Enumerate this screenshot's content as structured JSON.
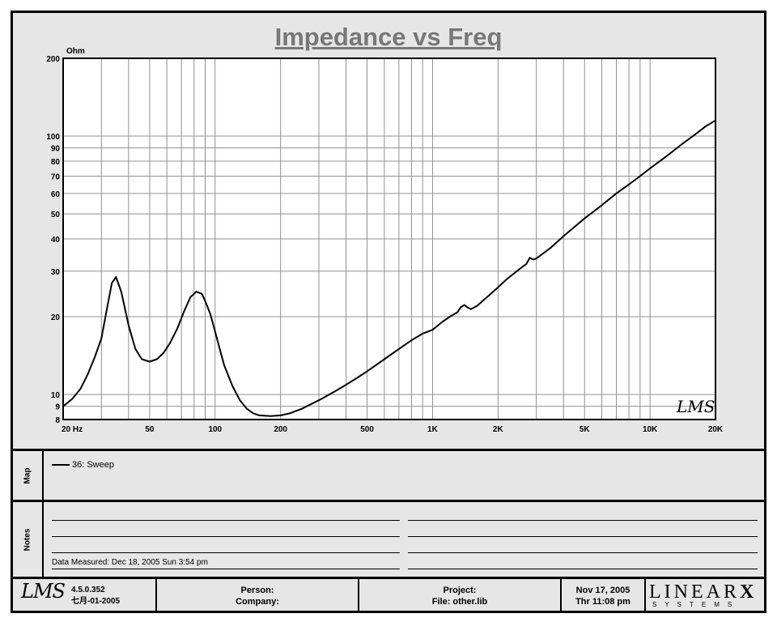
{
  "chart_data": {
    "type": "line",
    "title": "Impedance vs Freq",
    "ylabel": "Ohm",
    "x_scale": "log",
    "y_scale": "log",
    "xlim": [
      20,
      20000
    ],
    "ylim": [
      8,
      200
    ],
    "x_ticks": [
      20,
      50,
      100,
      200,
      500,
      1000,
      2000,
      5000,
      10000,
      20000
    ],
    "x_tick_labels": [
      "20  Hz",
      "50",
      "100",
      "200",
      "500",
      "1K",
      "2K",
      "5K",
      "10K",
      "20K"
    ],
    "y_ticks": [
      8,
      9,
      10,
      20,
      30,
      40,
      50,
      60,
      70,
      80,
      90,
      100,
      200
    ],
    "y_tick_labels": [
      "8",
      "9",
      "10",
      "20",
      "30",
      "40",
      "50",
      "60",
      "70",
      "80",
      "90",
      "100",
      "200"
    ],
    "grid": true,
    "watermark": "LMS",
    "series": [
      {
        "name": "36: Sweep",
        "color": "#000000",
        "x": [
          20,
          22,
          24,
          26,
          28,
          30,
          32,
          33.5,
          35,
          37,
          40,
          43,
          46,
          50,
          54,
          58,
          62,
          67,
          72,
          77,
          82,
          87,
          90,
          95,
          100,
          105,
          110,
          120,
          130,
          140,
          150,
          160,
          180,
          200,
          220,
          250,
          300,
          350,
          400,
          450,
          500,
          600,
          700,
          800,
          900,
          1000,
          1100,
          1200,
          1300,
          1350,
          1400,
          1450,
          1500,
          1600,
          1800,
          2000,
          2200,
          2500,
          2700,
          2800,
          2900,
          3000,
          3500,
          4000,
          5000,
          6000,
          7000,
          8000,
          9000,
          10000,
          12000,
          14000,
          16000,
          18000,
          20000
        ],
        "y": [
          9.0,
          9.6,
          10.5,
          12.0,
          14.0,
          16.5,
          22,
          27,
          28.5,
          25,
          18.5,
          15.0,
          13.7,
          13.4,
          13.7,
          14.5,
          15.8,
          18.0,
          21.0,
          23.8,
          25.0,
          24.5,
          23,
          20.5,
          17.5,
          15.0,
          13.0,
          10.8,
          9.5,
          8.8,
          8.45,
          8.3,
          8.25,
          8.3,
          8.45,
          8.8,
          9.5,
          10.2,
          10.9,
          11.6,
          12.3,
          13.7,
          15.0,
          16.2,
          17.2,
          17.8,
          19.0,
          20.0,
          20.8,
          21.8,
          22.2,
          21.7,
          21.4,
          22.0,
          24.0,
          26.0,
          28.0,
          30.5,
          32.0,
          33.8,
          33.3,
          33.6,
          37.0,
          41.0,
          48.0,
          54.0,
          60.0,
          65.0,
          70.0,
          75.0,
          84.0,
          93.0,
          101.0,
          109.0,
          115.0
        ]
      }
    ]
  },
  "map": {
    "label": "Map",
    "legend_entry": "36: Sweep"
  },
  "notes": {
    "label": "Notes",
    "data_measured": "Data Measured: Dec 18, 2005  Sun  3:54 pm"
  },
  "footer": {
    "lms": "LMS",
    "version": "4.5.0.352",
    "build_date": "七月-01-2005",
    "person": "Person:",
    "company": "Company:",
    "project": "Project:",
    "file": "File: other.lib",
    "date": "Nov 17, 2005",
    "time": "Thr 11:08 pm",
    "logo": "LINEAR",
    "logo_x": "X",
    "logo_sub": "SYSTEMS"
  }
}
